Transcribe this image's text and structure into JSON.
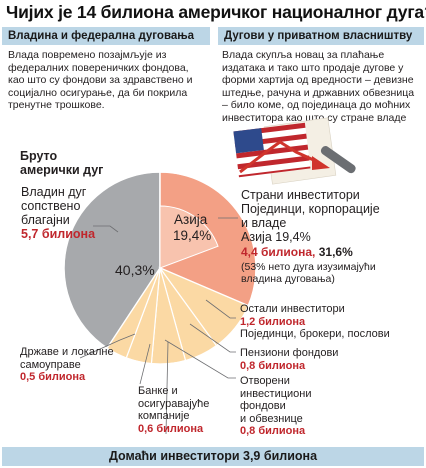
{
  "title": "Чијих је 14 билиона америчког националног дуга?",
  "left_panel": {
    "header": "Владина и федерална дуговања",
    "description_lines": [
      "Влада повремено позајмљује из",
      "федералних повереничких фондова,",
      "као што су фондови за здравствено и",
      "социјално осигурање, да би покрила",
      "тренутне трошкове."
    ]
  },
  "right_panel": {
    "header": "Дугови у приватном власништву",
    "description_lines": [
      "Влада скупља новац за плаћање",
      "издатака и тако што продаје дугове у",
      "форми хартија од вредности – девизне",
      "штедње, рачуна и државних обвезница",
      "– било коме, од појединаца до моћних",
      "инвеститора као што су стране владе"
    ]
  },
  "colors": {
    "government": "#a7a9ac",
    "foreign": "#f3a085",
    "domestic": "#fbd9a4",
    "highlight_red": "#c0272d",
    "header_blue": "#bcd6e6",
    "flag_blue": "#2e4a8c",
    "flag_red": "#c0272d",
    "arrow_red": "#d0342c"
  },
  "illustration": {
    "icon": "us-flag-debt-chart-icon"
  },
  "chart_data": {
    "type": "pie",
    "title": "Бруто амерички дуг",
    "unit": "билиона",
    "total_label": "14 билиона",
    "slices": [
      {
        "id": "government",
        "name_lines": [
          "Владин дуг",
          "сопствено",
          "благајни"
        ],
        "value_label": "5,7 билиона",
        "value": 5.7,
        "percent_label": "40,3%",
        "percent": 40.3,
        "group": "government"
      },
      {
        "id": "foreign",
        "name_lines": [
          "Страни инвеститори",
          "Појединци, корпорације",
          "и владе"
        ],
        "asia_share_label": "Азија 19,4%",
        "value_label": "4,4 билиона,",
        "value": 4.4,
        "percent_label": "31,6%",
        "percent": 31.6,
        "note_lines": [
          "(53% нето дуга изузимајући",
          "владина дуговања)"
        ],
        "group": "foreign"
      },
      {
        "id": "other",
        "name_lines": [
          "Остали инвеститори"
        ],
        "value_label": "1,2 билиона",
        "value": 1.2,
        "sub_lines": [
          "Појединци, брокери, послови"
        ],
        "group": "domestic"
      },
      {
        "id": "pension",
        "name_lines": [
          "Пензиони фондови"
        ],
        "value_label": "0,8 билиона",
        "value": 0.8,
        "group": "domestic"
      },
      {
        "id": "openfunds",
        "name_lines": [
          "Отворени",
          "инвестициони",
          "фондови",
          "и обвезнице"
        ],
        "value_label": "0,8 билиона",
        "value": 0.8,
        "group": "domestic"
      },
      {
        "id": "banks",
        "name_lines": [
          "Банке и",
          "осигуравајуће",
          "компаније"
        ],
        "value_label": "0,6 билиона",
        "value": 0.6,
        "group": "domestic"
      },
      {
        "id": "states",
        "name_lines": [
          "Државе и локалне",
          "самоуправе"
        ],
        "value_label": "0,5 билиона",
        "value": 0.5,
        "group": "domestic"
      }
    ],
    "inner_segment": {
      "label": "Азија",
      "percent_label": "19,4%",
      "percent": 19.4
    },
    "domestic_label": "Домаћи инвеститори 3,9 билиона"
  }
}
